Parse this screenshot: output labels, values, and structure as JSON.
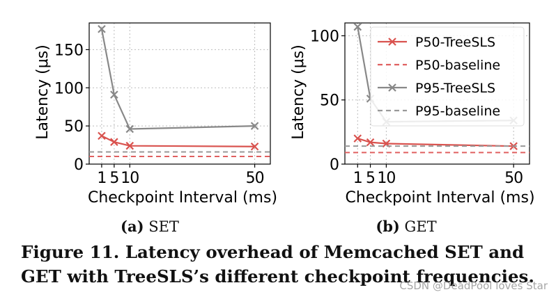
{
  "figure": {
    "caption_line1": "Figure 11. Latency overhead of Memcached SET and",
    "caption_line2": "GET with TreeSLS’s different checkpoint frequencies.",
    "watermark": "CSDN @DeadPool loves Star"
  },
  "colors": {
    "treesls_p50": "#d9534f",
    "baseline_p50": "#e06060",
    "treesls_p95": "#888888",
    "baseline_p95": "#999999",
    "grid": "#bbbbbb"
  },
  "legend": {
    "placement": "top-right",
    "entries": [
      "P50-TreeSLS",
      "P50-baseline",
      "P95-TreeSLS",
      "P95-baseline"
    ]
  },
  "chart_data": [
    {
      "type": "line",
      "panel_label": "(a)",
      "panel_title": "SET",
      "xlabel": "Checkpoint Interval (ms)",
      "ylabel": "Latency (μs)",
      "x_ticks": [
        "1",
        "5",
        "10",
        "50"
      ],
      "y_ticks": [
        0,
        50,
        100,
        150
      ],
      "xlim": [
        -3,
        55
      ],
      "ylim": [
        0,
        185
      ],
      "grid": true,
      "show_legend": false,
      "series": [
        {
          "name": "P50-TreeSLS",
          "x": [
            1,
            5,
            10,
            50
          ],
          "values": [
            37,
            29,
            24,
            23
          ],
          "style": "solid-marker"
        },
        {
          "name": "P50-baseline",
          "constant": 10,
          "style": "dashed"
        },
        {
          "name": "P95-TreeSLS",
          "x": [
            1,
            5,
            10,
            50
          ],
          "values": [
            177,
            91,
            46,
            50
          ],
          "style": "solid-marker"
        },
        {
          "name": "P95-baseline",
          "constant": 16,
          "style": "dashed"
        }
      ]
    },
    {
      "type": "line",
      "panel_label": "(b)",
      "panel_title": "GET",
      "xlabel": "Checkpoint Interval (ms)",
      "ylabel": "Latency (μs)",
      "x_ticks": [
        "1",
        "5",
        "10",
        "50"
      ],
      "y_ticks": [
        0,
        50,
        100
      ],
      "xlim": [
        -3,
        55
      ],
      "ylim": [
        0,
        110
      ],
      "grid": true,
      "show_legend": true,
      "series": [
        {
          "name": "P50-TreeSLS",
          "x": [
            1,
            5,
            10,
            50
          ],
          "values": [
            20,
            17,
            16,
            14
          ],
          "style": "solid-marker"
        },
        {
          "name": "P50-baseline",
          "constant": 9,
          "style": "dashed"
        },
        {
          "name": "P95-TreeSLS",
          "x": [
            1,
            5,
            10,
            50
          ],
          "values": [
            107,
            51,
            33,
            34
          ],
          "style": "solid-marker"
        },
        {
          "name": "P95-baseline",
          "constant": 14,
          "style": "dashed"
        }
      ]
    }
  ]
}
